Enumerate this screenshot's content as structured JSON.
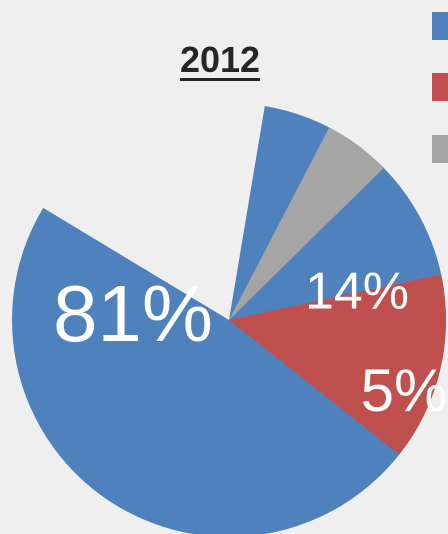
{
  "chart_data": {
    "type": "pie",
    "title": "2012",
    "categories": [
      "",
      "",
      ""
    ],
    "values": [
      81,
      14,
      5
    ],
    "labels": [
      "81%",
      "14%",
      "5%"
    ],
    "colors": [
      "#4f81bd",
      "#c0504d",
      "#a5a5a5"
    ],
    "legend": "right",
    "start_angle_deg": 80.5,
    "direction": "counterclockwise"
  }
}
